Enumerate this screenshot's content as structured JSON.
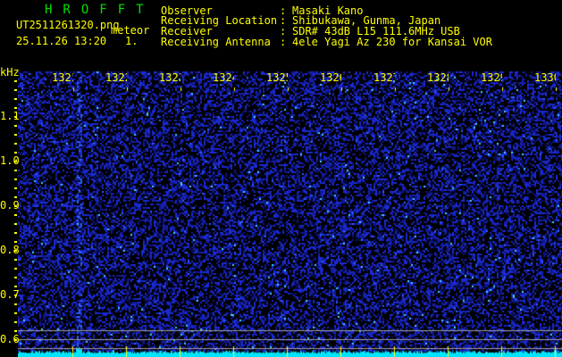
{
  "app_title": "HROFFT",
  "file_name": "UT2511261320.png",
  "mode": "meteor",
  "datetime": "25.11.26 13:20",
  "count": "1.",
  "info": [
    {
      "label": "Observer",
      "value": "Masaki Kano"
    },
    {
      "label": "Receiving Location",
      "value": "Shibukawa, Gunma, Japan"
    },
    {
      "label": "Receiver",
      "value": "SDR# 43dB L15 111.6MHz USB"
    },
    {
      "label": "Receiving Antenna",
      "value": "4ele Yagi Az 230 for Kansai VOR"
    }
  ],
  "y_unit": "kHz",
  "y_ticks": [
    "1.1",
    "1.0",
    "0.9",
    "0.8",
    "0.7",
    "0.6"
  ],
  "x_ticks": [
    "1321",
    "1322",
    "1323",
    "1324",
    "1325",
    "1326",
    "1327",
    "1328",
    "1329",
    "1330"
  ],
  "colors": {
    "text": "#ffff00",
    "logo": "#00e000",
    "noise": "#1a2ad0",
    "signal": "#00e5ff"
  }
}
